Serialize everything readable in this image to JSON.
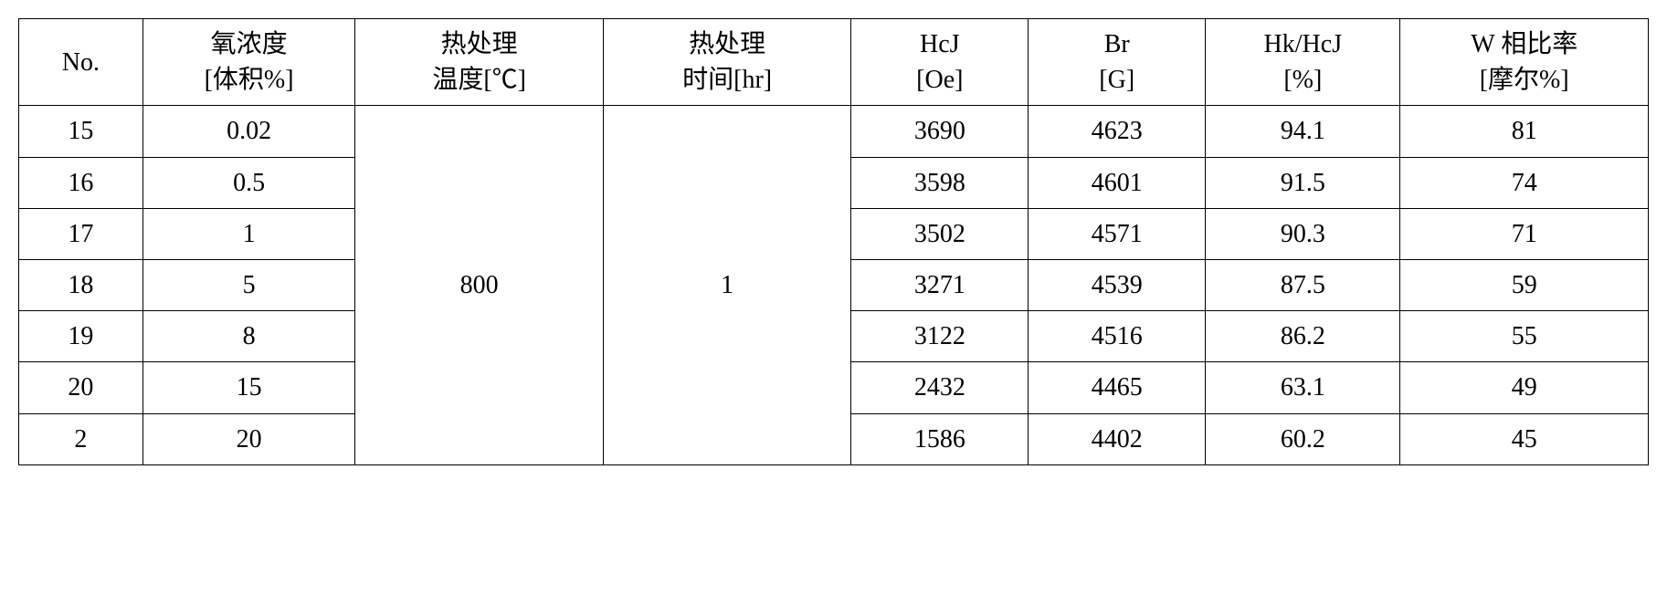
{
  "table": {
    "headers": {
      "no": {
        "line1": "No.",
        "line2": ""
      },
      "oxygen": {
        "line1": "氧浓度",
        "line2": "[体积%]"
      },
      "temp": {
        "line1": "热处理",
        "line2": "温度[℃]"
      },
      "time": {
        "line1": "热处理",
        "line2": "时间[hr]"
      },
      "hcj": {
        "line1": "HcJ",
        "line2": "[Oe]"
      },
      "br": {
        "line1": "Br",
        "line2": "[G]"
      },
      "hkhcj": {
        "line1": "Hk/HcJ",
        "line2": "[%]"
      },
      "wratio": {
        "line1": "W 相比率",
        "line2": "[摩尔%]"
      }
    },
    "merged": {
      "temp_value": "800",
      "time_value": "1"
    },
    "rows": [
      {
        "no": "15",
        "oxygen": "0.02",
        "hcj": "3690",
        "br": "4623",
        "hkhcj": "94.1",
        "wratio": "81"
      },
      {
        "no": "16",
        "oxygen": "0.5",
        "hcj": "3598",
        "br": "4601",
        "hkhcj": "91.5",
        "wratio": "74"
      },
      {
        "no": "17",
        "oxygen": "1",
        "hcj": "3502",
        "br": "4571",
        "hkhcj": "90.3",
        "wratio": "71"
      },
      {
        "no": "18",
        "oxygen": "5",
        "hcj": "3271",
        "br": "4539",
        "hkhcj": "87.5",
        "wratio": "59"
      },
      {
        "no": "19",
        "oxygen": "8",
        "hcj": "3122",
        "br": "4516",
        "hkhcj": "86.2",
        "wratio": "55"
      },
      {
        "no": "20",
        "oxygen": "15",
        "hcj": "2432",
        "br": "4465",
        "hkhcj": "63.1",
        "wratio": "49"
      },
      {
        "no": "2",
        "oxygen": "20",
        "hcj": "1586",
        "br": "4402",
        "hkhcj": "60.2",
        "wratio": "45"
      }
    ],
    "styling": {
      "border_color": "#000000",
      "border_width": 1.5,
      "background_color": "#ffffff",
      "text_color": "#000000",
      "font_size": 28,
      "font_family": "SimSun, Times New Roman, serif",
      "cell_padding": "8px 12px",
      "text_align": "center"
    }
  }
}
